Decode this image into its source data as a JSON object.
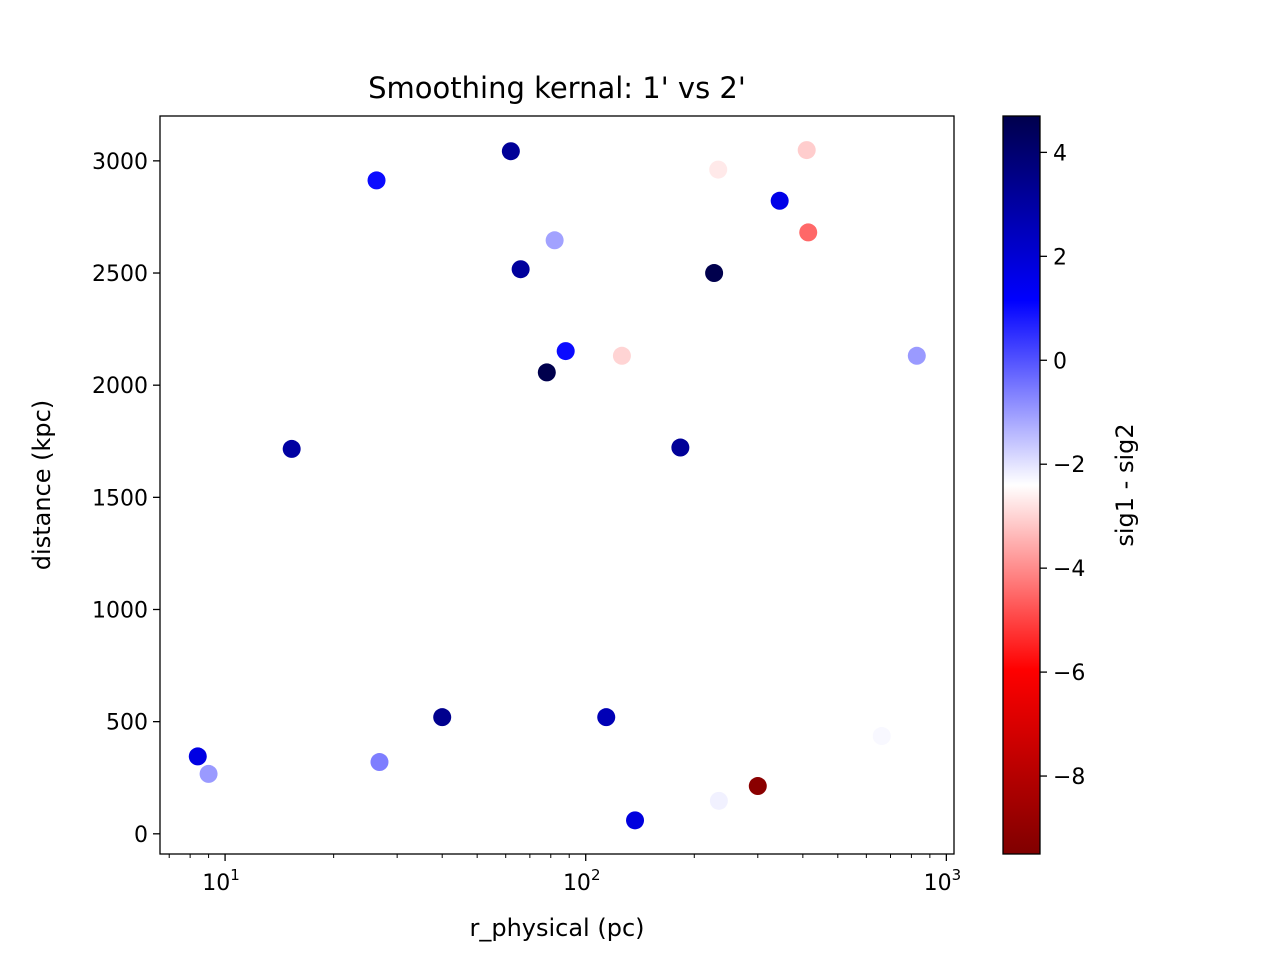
{
  "chart_data": {
    "type": "scatter",
    "title": "Smoothing kernal: 1' vs 2'",
    "xlabel": "r_physical (pc)",
    "ylabel": "distance (kpc)",
    "xscale": "log",
    "xlim": [
      6.6,
      1050
    ],
    "ylim": [
      -90,
      3200
    ],
    "x_ticks": [
      {
        "base": "10",
        "exp": "1",
        "value": 10
      },
      {
        "base": "10",
        "exp": "2",
        "value": 100
      },
      {
        "base": "10",
        "exp": "3",
        "value": 1000
      }
    ],
    "y_ticks": [
      {
        "label": "0",
        "value": 0
      },
      {
        "label": "500",
        "value": 500
      },
      {
        "label": "1000",
        "value": 1000
      },
      {
        "label": "1500",
        "value": 1500
      },
      {
        "label": "2000",
        "value": 2000
      },
      {
        "label": "2500",
        "value": 2500
      },
      {
        "label": "3000",
        "value": 3000
      }
    ],
    "colorbar": {
      "label": "sig1 - sig2",
      "colormap": "seismic_r",
      "range": [
        -9.5,
        4.7
      ],
      "ticks": [
        {
          "label": "4",
          "value": 4
        },
        {
          "label": "2",
          "value": 2
        },
        {
          "label": "0",
          "value": 0
        },
        {
          "label": "−2",
          "value": -2
        },
        {
          "label": "−4",
          "value": -4
        },
        {
          "label": "−6",
          "value": -6
        },
        {
          "label": "−8",
          "value": -8
        }
      ]
    },
    "points": [
      {
        "x": 8.4,
        "y": 345,
        "c": 1.7
      },
      {
        "x": 9.0,
        "y": 267,
        "c": -1.0
      },
      {
        "x": 15.3,
        "y": 1716,
        "c": 3.0
      },
      {
        "x": 26.3,
        "y": 2913,
        "c": 1.0
      },
      {
        "x": 26.8,
        "y": 320,
        "c": -0.6
      },
      {
        "x": 40.0,
        "y": 520,
        "c": 3.4
      },
      {
        "x": 62.0,
        "y": 3043,
        "c": 3.2
      },
      {
        "x": 66.0,
        "y": 2517,
        "c": 3.1
      },
      {
        "x": 78.0,
        "y": 2057,
        "c": 4.7
      },
      {
        "x": 82.0,
        "y": 2646,
        "c": -1.1
      },
      {
        "x": 88.0,
        "y": 2152,
        "c": 1.0
      },
      {
        "x": 114.0,
        "y": 520,
        "c": 2.6
      },
      {
        "x": 126.0,
        "y": 2131,
        "c": -3.0
      },
      {
        "x": 137.0,
        "y": 60,
        "c": 1.8
      },
      {
        "x": 183.0,
        "y": 1722,
        "c": 3.2
      },
      {
        "x": 227.0,
        "y": 2500,
        "c": 4.7
      },
      {
        "x": 233.0,
        "y": 2961,
        "c": -2.7
      },
      {
        "x": 234.0,
        "y": 147,
        "c": -2.2
      },
      {
        "x": 300.0,
        "y": 213,
        "c": -9.2
      },
      {
        "x": 345.0,
        "y": 2822,
        "c": 1.6
      },
      {
        "x": 410.0,
        "y": 3048,
        "c": -3.1
      },
      {
        "x": 414.0,
        "y": 2681,
        "c": -4.5
      },
      {
        "x": 662.0,
        "y": 436,
        "c": -2.3
      },
      {
        "x": 828.0,
        "y": 2131,
        "c": -1.0
      }
    ]
  }
}
